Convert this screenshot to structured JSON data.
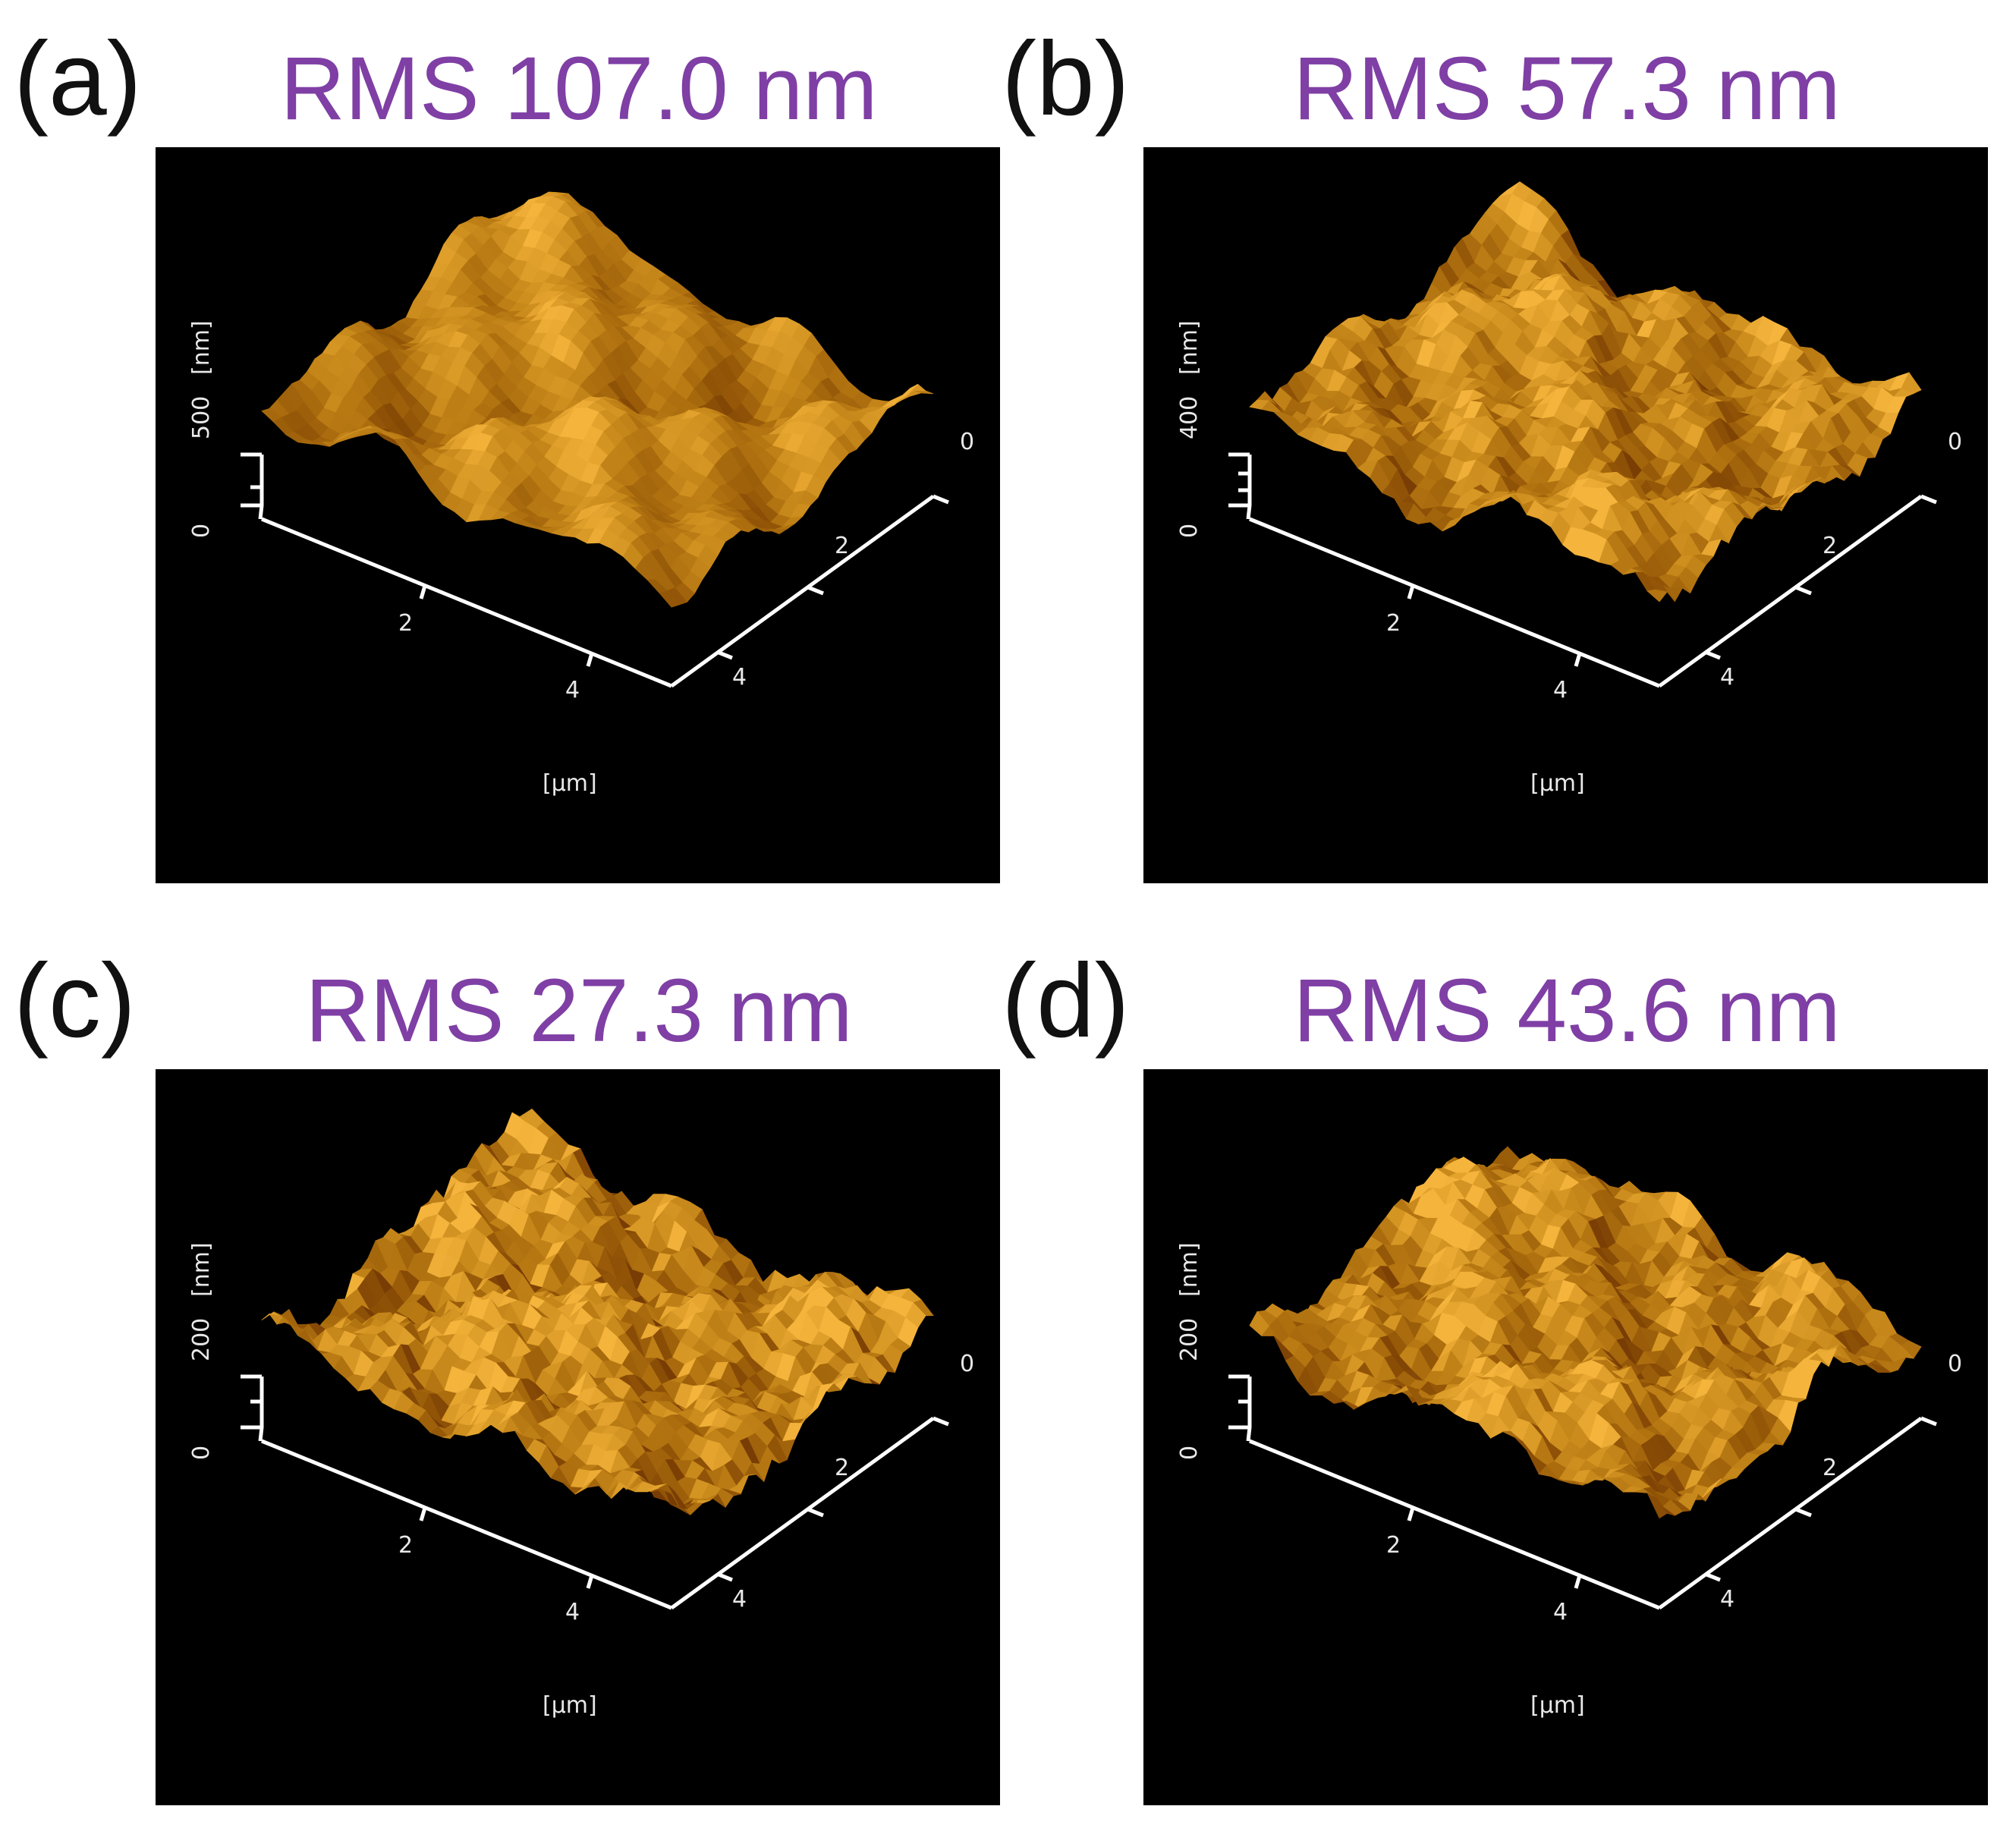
{
  "panels": [
    {
      "letter": "(a)",
      "rms": "RMS 107.0 nm",
      "z_max": "500",
      "z_zero": "0",
      "z_unit": "[nm]",
      "x_ticks": [
        "2",
        "4"
      ],
      "y_ticks": [
        "0",
        "2",
        "4"
      ],
      "xy_unit": "[µm]"
    },
    {
      "letter": "(b)",
      "rms": "RMS 57.3 nm",
      "z_max": "400",
      "z_zero": "0",
      "z_unit": "[nm]",
      "x_ticks": [
        "2",
        "4"
      ],
      "y_ticks": [
        "0",
        "2",
        "4"
      ],
      "xy_unit": "[µm]"
    },
    {
      "letter": "(c)",
      "rms": "RMS 27.3 nm",
      "z_max": "200",
      "z_zero": "0",
      "z_unit": "[nm]",
      "x_ticks": [
        "2",
        "4"
      ],
      "y_ticks": [
        "0",
        "2",
        "4"
      ],
      "xy_unit": "[µm]"
    },
    {
      "letter": "(d)",
      "rms": "RMS 43.6 nm",
      "z_max": "200",
      "z_zero": "0",
      "z_unit": "[nm]",
      "x_ticks": [
        "2",
        "4"
      ],
      "y_ticks": [
        "0",
        "2",
        "4"
      ],
      "xy_unit": "[µm]"
    }
  ]
}
